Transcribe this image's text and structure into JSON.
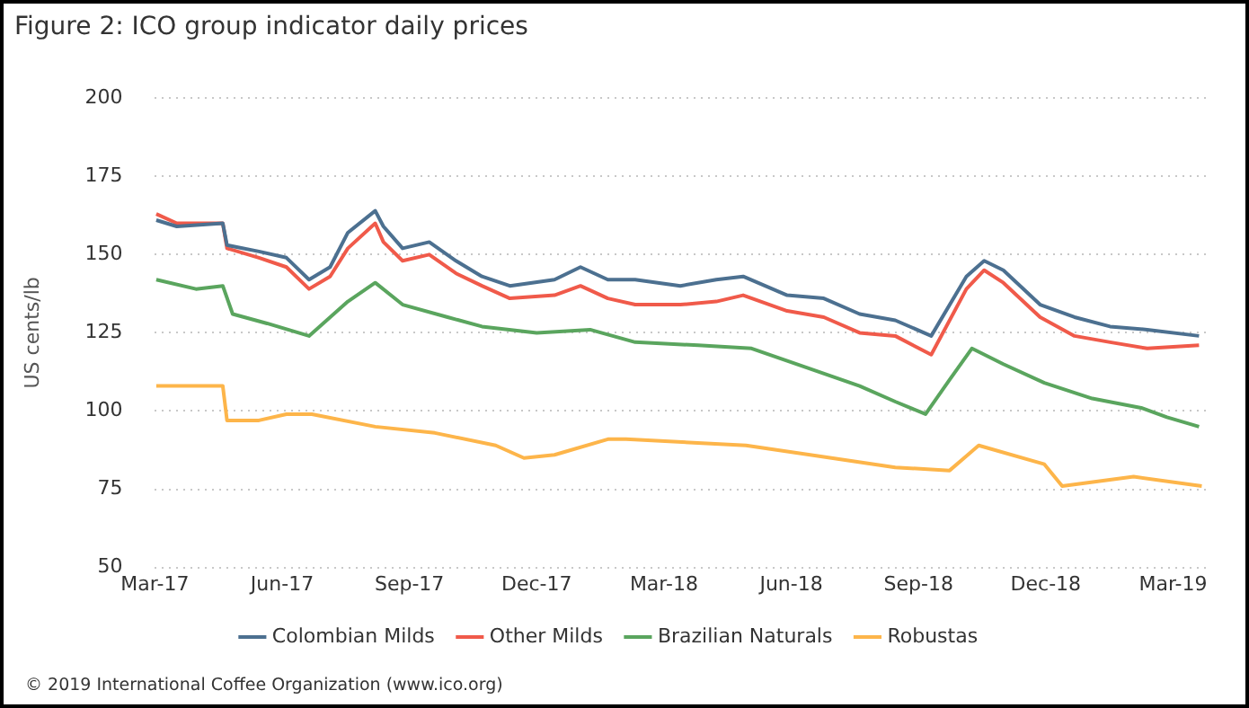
{
  "chart_data": {
    "type": "line",
    "title": "Figure 2: ICO group indicator daily prices",
    "ylabel": "US cents/lb",
    "annotations": [
      "© 2019 International Coffee Organization (www.ico.org)"
    ],
    "xlim": [
      "2017-03-01",
      "2019-03-25"
    ],
    "xticks": [
      {
        "value": "2017-03-01",
        "label": "Mar-17"
      },
      {
        "value": "2017-06-01",
        "label": "Jun-17"
      },
      {
        "value": "2017-09-01",
        "label": "Sep-17"
      },
      {
        "value": "2017-12-01",
        "label": "Dec-17"
      },
      {
        "value": "2018-03-01",
        "label": "Mar-18"
      },
      {
        "value": "2018-06-01",
        "label": "Jun-18"
      },
      {
        "value": "2018-09-01",
        "label": "Sep-18"
      },
      {
        "value": "2018-12-01",
        "label": "Dec-18"
      },
      {
        "value": "2019-03-01",
        "label": "Mar-19"
      }
    ],
    "ylim": [
      50,
      200
    ],
    "yticks": [
      50,
      75,
      100,
      125,
      150,
      175,
      200
    ],
    "grid": "y",
    "legend": "bottom",
    "marker": "none",
    "series": [
      {
        "name": "Colombian Milds",
        "color": "#4c7090",
        "x": [
          "2017-03-02",
          "2017-03-17",
          "2017-04-19",
          "2017-04-22",
          "2017-05-15",
          "2017-06-04",
          "2017-06-20",
          "2017-07-05",
          "2017-07-18",
          "2017-08-07",
          "2017-08-13",
          "2017-08-27",
          "2017-09-15",
          "2017-10-04",
          "2017-10-23",
          "2017-11-12",
          "2017-12-14",
          "2018-01-02",
          "2018-01-22",
          "2018-02-10",
          "2018-03-13",
          "2018-04-08",
          "2018-04-27",
          "2018-05-29",
          "2018-06-24",
          "2018-07-20",
          "2018-08-15",
          "2018-09-10",
          "2018-10-05",
          "2018-10-18",
          "2018-11-01",
          "2018-11-27",
          "2018-12-22",
          "2019-01-17",
          "2019-02-12",
          "2019-03-20"
        ],
        "values": [
          161,
          159,
          160,
          153,
          151,
          149,
          142,
          146,
          157,
          164,
          159,
          152,
          154,
          148,
          143,
          140,
          142,
          146,
          142,
          142,
          140,
          142,
          143,
          137,
          136,
          131,
          129,
          124,
          143,
          148,
          145,
          134,
          130,
          127,
          126,
          124
        ]
      },
      {
        "name": "Other Milds",
        "color": "#f05a4a",
        "x": [
          "2017-03-02",
          "2017-03-17",
          "2017-04-19",
          "2017-04-22",
          "2017-05-15",
          "2017-06-04",
          "2017-06-20",
          "2017-07-05",
          "2017-07-18",
          "2017-08-07",
          "2017-08-13",
          "2017-08-27",
          "2017-09-15",
          "2017-10-04",
          "2017-10-23",
          "2017-11-12",
          "2017-12-14",
          "2018-01-02",
          "2018-01-22",
          "2018-02-10",
          "2018-03-13",
          "2018-04-08",
          "2018-04-27",
          "2018-05-29",
          "2018-06-24",
          "2018-07-20",
          "2018-08-15",
          "2018-09-10",
          "2018-10-05",
          "2018-10-18",
          "2018-11-01",
          "2018-11-27",
          "2018-12-22",
          "2019-01-17",
          "2019-02-12",
          "2019-03-20"
        ],
        "values": [
          163,
          160,
          160,
          152,
          149,
          146,
          139,
          143,
          152,
          160,
          154,
          148,
          150,
          144,
          140,
          136,
          137,
          140,
          136,
          134,
          134,
          135,
          137,
          132,
          130,
          125,
          124,
          118,
          139,
          145,
          141,
          130,
          124,
          122,
          120,
          121
        ]
      },
      {
        "name": "Brazilian Naturals",
        "color": "#5aa55e",
        "x": [
          "2017-03-02",
          "2017-03-31",
          "2017-04-19",
          "2017-04-26",
          "2017-05-21",
          "2017-06-20",
          "2017-07-18",
          "2017-08-07",
          "2017-08-27",
          "2017-09-28",
          "2017-10-23",
          "2017-12-01",
          "2018-01-09",
          "2018-02-10",
          "2018-03-26",
          "2018-05-03",
          "2018-06-11",
          "2018-07-20",
          "2018-08-15",
          "2018-09-06",
          "2018-09-23",
          "2018-10-09",
          "2018-11-01",
          "2018-11-30",
          "2019-01-04",
          "2019-02-08",
          "2019-02-25",
          "2019-03-20"
        ],
        "values": [
          142,
          139,
          140,
          131,
          128,
          124,
          135,
          141,
          134,
          130,
          127,
          125,
          126,
          122,
          121,
          120,
          114,
          108,
          103,
          99,
          110,
          120,
          115,
          109,
          104,
          101,
          98,
          95
        ]
      },
      {
        "name": "Robustas",
        "color": "#fdb54a",
        "x": [
          "2017-03-02",
          "2017-04-19",
          "2017-04-22",
          "2017-05-15",
          "2017-06-04",
          "2017-06-22",
          "2017-08-07",
          "2017-09-19",
          "2017-11-02",
          "2017-11-22",
          "2017-12-14",
          "2018-01-22",
          "2018-02-04",
          "2018-04-29",
          "2018-08-15",
          "2018-09-23",
          "2018-10-14",
          "2018-11-30",
          "2018-12-13",
          "2019-02-03",
          "2019-03-22"
        ],
        "values": [
          108,
          108,
          97,
          97,
          99,
          99,
          95,
          93,
          89,
          85,
          86,
          91,
          91,
          89,
          82,
          81,
          89,
          83,
          76,
          79,
          76
        ]
      }
    ]
  }
}
